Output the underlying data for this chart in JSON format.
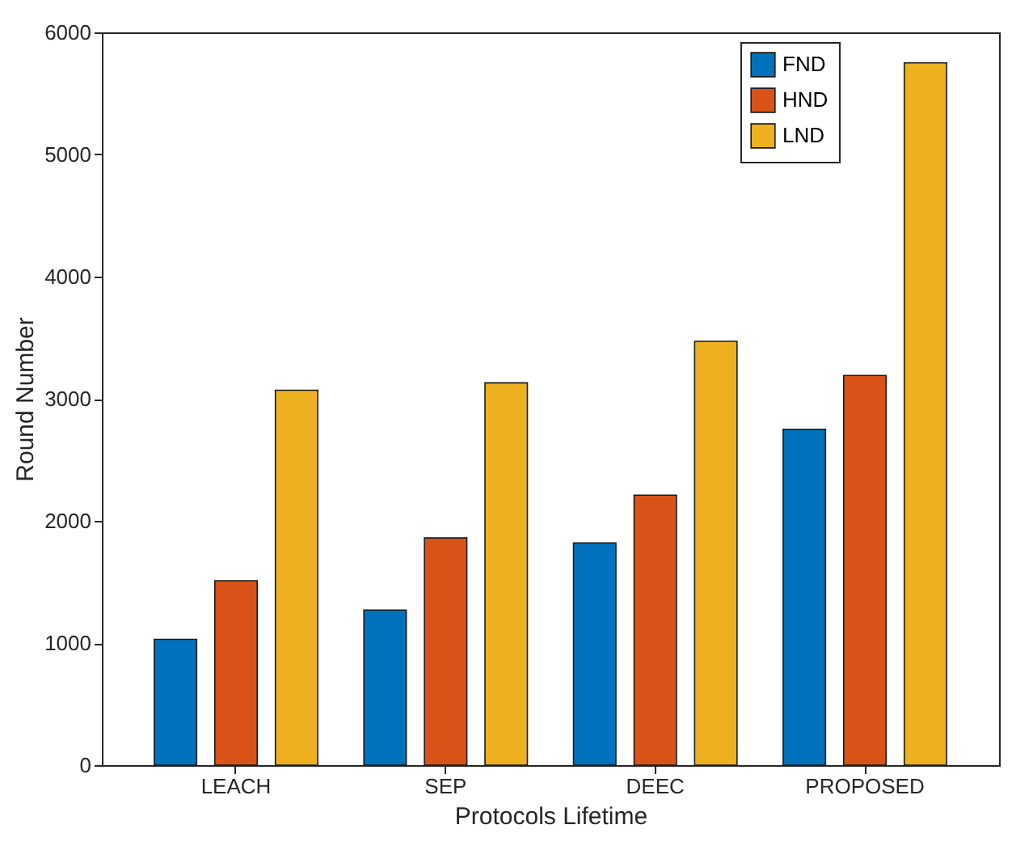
{
  "chart_data": {
    "type": "bar",
    "xlabel": "Protocols Lifetime",
    "ylabel": "Round Number",
    "categories": [
      "LEACH",
      "SEP",
      "DEEC",
      "PROPOSED"
    ],
    "series": [
      {
        "name": "FND",
        "color": "#0072bd",
        "values": [
          1030,
          1270,
          1820,
          2750
        ]
      },
      {
        "name": "HND",
        "color": "#d95319",
        "values": [
          1510,
          1860,
          2210,
          3190
        ]
      },
      {
        "name": "LND",
        "color": "#edb120",
        "values": [
          3070,
          3130,
          3470,
          5750
        ]
      }
    ],
    "ylim": [
      0,
      6000
    ],
    "yticks": [
      0,
      1000,
      2000,
      3000,
      4000,
      5000,
      6000
    ],
    "grid": false,
    "legend": "top right"
  }
}
